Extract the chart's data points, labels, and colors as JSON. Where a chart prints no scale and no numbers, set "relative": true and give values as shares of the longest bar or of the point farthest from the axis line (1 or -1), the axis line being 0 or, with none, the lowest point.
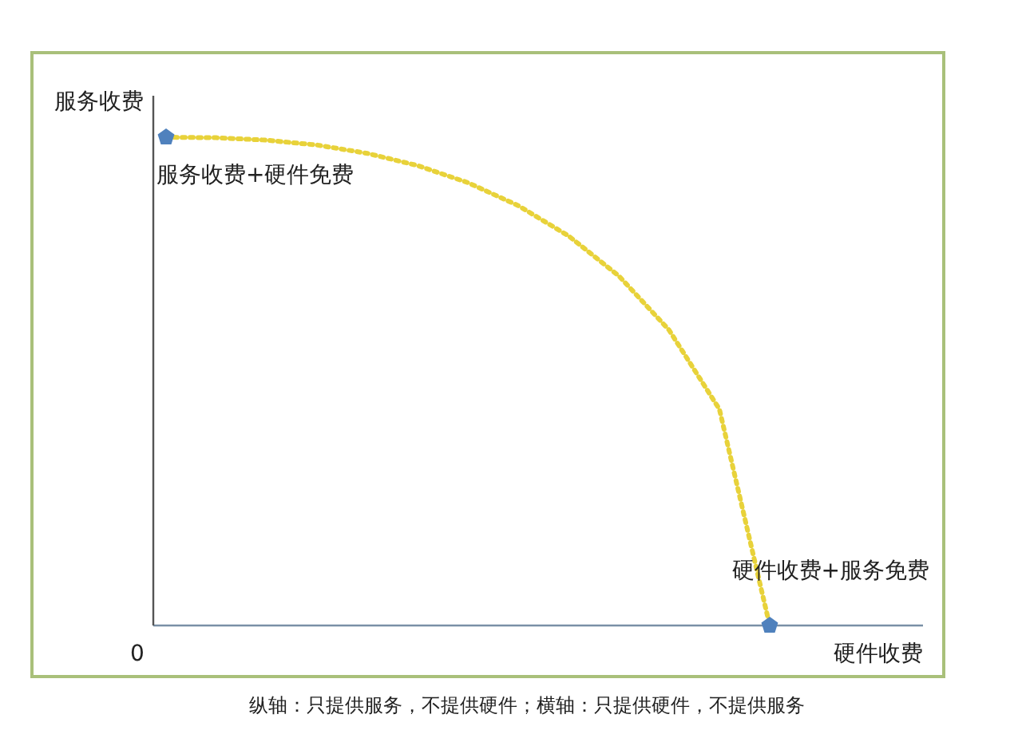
{
  "chart_data": {
    "type": "line",
    "relative": true,
    "ylabel": "服务收费",
    "xlabel": "硬件收费",
    "categories": [
      null,
      null,
      null,
      null,
      null,
      null,
      null,
      null,
      null,
      null,
      null,
      null,
      null
    ],
    "series": [
      {
        "color": "#e8d23a",
        "line_style": "dotted",
        "marker": "none",
        "values": [
          1,
          0.999,
          0.994,
          0.984,
          0.967,
          0.942,
          0.907,
          0.86,
          0.798,
          0.716,
          0.605,
          0.443,
          0
        ]
      }
    ],
    "annotations": [
      "服务收费+硬件免费",
      "硬件收费+服务免费",
      "0",
      "纵轴：只提供服务，不提供硬件；横轴：只提供硬件，不提供服务"
    ]
  }
}
